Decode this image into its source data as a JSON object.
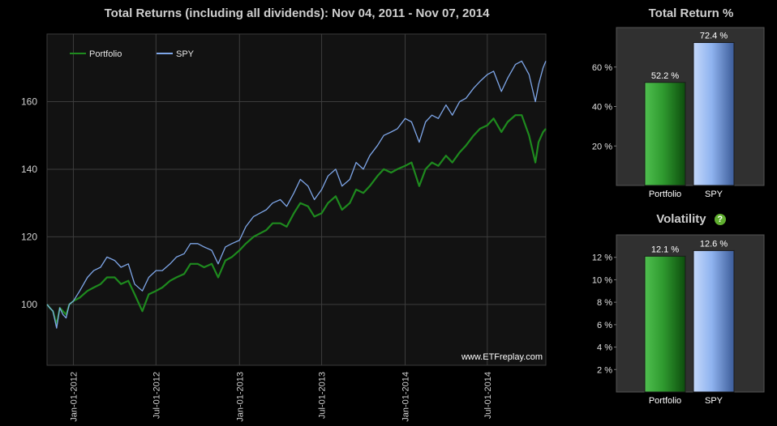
{
  "main_chart": {
    "title": "Total Returns (including all dividends): Nov 04, 2011 - Nov 07, 2014",
    "watermark": "www.ETFreplay.com",
    "chart_data": {
      "type": "line",
      "ylim": [
        82,
        180
      ],
      "yticks": [
        100,
        120,
        140,
        160
      ],
      "xlim": [
        "2011-11-04",
        "2014-11-07"
      ],
      "xticks": [
        {
          "date": "2012-01-01",
          "label": "Jan-01-2012"
        },
        {
          "date": "2012-07-01",
          "label": "Jul-01-2012"
        },
        {
          "date": "2013-01-01",
          "label": "Jan-01-2013"
        },
        {
          "date": "2013-07-01",
          "label": "Jul-01-2013"
        },
        {
          "date": "2014-01-01",
          "label": "Jan-01-2014"
        },
        {
          "date": "2014-07-01",
          "label": "Jul-01-2014"
        }
      ],
      "grid": true,
      "legend_position": "top-left",
      "series": [
        {
          "name": "Portfolio",
          "color": "#1e8a1e",
          "points": [
            [
              "2011-11-04",
              100
            ],
            [
              "2011-11-10",
              99
            ],
            [
              "2011-11-17",
              98
            ],
            [
              "2011-11-25",
              94
            ],
            [
              "2011-12-02",
              99
            ],
            [
              "2011-12-09",
              98
            ],
            [
              "2011-12-16",
              97
            ],
            [
              "2011-12-23",
              100
            ],
            [
              "2012-01-01",
              101
            ],
            [
              "2012-01-15",
              102
            ],
            [
              "2012-02-01",
              104
            ],
            [
              "2012-02-15",
              105
            ],
            [
              "2012-03-01",
              106
            ],
            [
              "2012-03-15",
              108
            ],
            [
              "2012-04-01",
              108
            ],
            [
              "2012-04-15",
              106
            ],
            [
              "2012-05-01",
              107
            ],
            [
              "2012-05-15",
              103
            ],
            [
              "2012-06-01",
              98
            ],
            [
              "2012-06-15",
              103
            ],
            [
              "2012-07-01",
              104
            ],
            [
              "2012-07-15",
              105
            ],
            [
              "2012-08-01",
              107
            ],
            [
              "2012-08-15",
              108
            ],
            [
              "2012-09-01",
              109
            ],
            [
              "2012-09-15",
              112
            ],
            [
              "2012-10-01",
              112
            ],
            [
              "2012-10-15",
              111
            ],
            [
              "2012-11-01",
              112
            ],
            [
              "2012-11-15",
              108
            ],
            [
              "2012-12-01",
              113
            ],
            [
              "2012-12-15",
              114
            ],
            [
              "2013-01-01",
              116
            ],
            [
              "2013-01-15",
              118
            ],
            [
              "2013-02-01",
              120
            ],
            [
              "2013-02-15",
              121
            ],
            [
              "2013-03-01",
              122
            ],
            [
              "2013-03-15",
              124
            ],
            [
              "2013-04-01",
              124
            ],
            [
              "2013-04-15",
              123
            ],
            [
              "2013-05-01",
              127
            ],
            [
              "2013-05-15",
              130
            ],
            [
              "2013-06-01",
              129
            ],
            [
              "2013-06-15",
              126
            ],
            [
              "2013-07-01",
              127
            ],
            [
              "2013-07-15",
              130
            ],
            [
              "2013-08-01",
              132
            ],
            [
              "2013-08-15",
              128
            ],
            [
              "2013-09-01",
              130
            ],
            [
              "2013-09-15",
              134
            ],
            [
              "2013-10-01",
              133
            ],
            [
              "2013-10-15",
              135
            ],
            [
              "2013-11-01",
              138
            ],
            [
              "2013-11-15",
              140
            ],
            [
              "2013-12-01",
              139
            ],
            [
              "2013-12-15",
              140
            ],
            [
              "2014-01-01",
              141
            ],
            [
              "2014-01-15",
              142
            ],
            [
              "2014-02-01",
              135
            ],
            [
              "2014-02-15",
              140
            ],
            [
              "2014-03-01",
              142
            ],
            [
              "2014-03-15",
              141
            ],
            [
              "2014-04-01",
              144
            ],
            [
              "2014-04-15",
              142
            ],
            [
              "2014-05-01",
              145
            ],
            [
              "2014-05-15",
              147
            ],
            [
              "2014-06-01",
              150
            ],
            [
              "2014-06-15",
              152
            ],
            [
              "2014-07-01",
              153
            ],
            [
              "2014-07-15",
              155
            ],
            [
              "2014-08-01",
              151
            ],
            [
              "2014-08-15",
              154
            ],
            [
              "2014-09-01",
              156
            ],
            [
              "2014-09-15",
              156
            ],
            [
              "2014-10-01",
              150
            ],
            [
              "2014-10-15",
              142
            ],
            [
              "2014-10-22",
              148
            ],
            [
              "2014-11-01",
              151
            ],
            [
              "2014-11-07",
              152
            ]
          ]
        },
        {
          "name": "SPY",
          "color": "#7ea6e8",
          "points": [
            [
              "2011-11-04",
              100
            ],
            [
              "2011-11-10",
              99
            ],
            [
              "2011-11-17",
              98
            ],
            [
              "2011-11-25",
              93
            ],
            [
              "2011-12-02",
              99
            ],
            [
              "2011-12-09",
              97
            ],
            [
              "2011-12-16",
              96
            ],
            [
              "2011-12-23",
              100
            ],
            [
              "2012-01-01",
              101
            ],
            [
              "2012-01-15",
              104
            ],
            [
              "2012-02-01",
              108
            ],
            [
              "2012-02-15",
              110
            ],
            [
              "2012-03-01",
              111
            ],
            [
              "2012-03-15",
              114
            ],
            [
              "2012-04-01",
              113
            ],
            [
              "2012-04-15",
              111
            ],
            [
              "2012-05-01",
              112
            ],
            [
              "2012-05-15",
              106
            ],
            [
              "2012-06-01",
              104
            ],
            [
              "2012-06-15",
              108
            ],
            [
              "2012-07-01",
              110
            ],
            [
              "2012-07-15",
              110
            ],
            [
              "2012-08-01",
              112
            ],
            [
              "2012-08-15",
              114
            ],
            [
              "2012-09-01",
              115
            ],
            [
              "2012-09-15",
              118
            ],
            [
              "2012-10-01",
              118
            ],
            [
              "2012-10-15",
              117
            ],
            [
              "2012-11-01",
              116
            ],
            [
              "2012-11-15",
              112
            ],
            [
              "2012-12-01",
              117
            ],
            [
              "2012-12-15",
              118
            ],
            [
              "2013-01-01",
              119
            ],
            [
              "2013-01-15",
              123
            ],
            [
              "2013-02-01",
              126
            ],
            [
              "2013-02-15",
              127
            ],
            [
              "2013-03-01",
              128
            ],
            [
              "2013-03-15",
              130
            ],
            [
              "2013-04-01",
              131
            ],
            [
              "2013-04-15",
              129
            ],
            [
              "2013-05-01",
              133
            ],
            [
              "2013-05-15",
              137
            ],
            [
              "2013-06-01",
              135
            ],
            [
              "2013-06-15",
              131
            ],
            [
              "2013-07-01",
              134
            ],
            [
              "2013-07-15",
              138
            ],
            [
              "2013-08-01",
              140
            ],
            [
              "2013-08-15",
              135
            ],
            [
              "2013-09-01",
              137
            ],
            [
              "2013-09-15",
              142
            ],
            [
              "2013-10-01",
              140
            ],
            [
              "2013-10-15",
              144
            ],
            [
              "2013-11-01",
              147
            ],
            [
              "2013-11-15",
              150
            ],
            [
              "2013-12-01",
              151
            ],
            [
              "2013-12-15",
              152
            ],
            [
              "2014-01-01",
              155
            ],
            [
              "2014-01-15",
              154
            ],
            [
              "2014-02-01",
              148
            ],
            [
              "2014-02-15",
              154
            ],
            [
              "2014-03-01",
              156
            ],
            [
              "2014-03-15",
              155
            ],
            [
              "2014-04-01",
              159
            ],
            [
              "2014-04-15",
              156
            ],
            [
              "2014-05-01",
              160
            ],
            [
              "2014-05-15",
              161
            ],
            [
              "2014-06-01",
              164
            ],
            [
              "2014-06-15",
              166
            ],
            [
              "2014-07-01",
              168
            ],
            [
              "2014-07-15",
              169
            ],
            [
              "2014-08-01",
              163
            ],
            [
              "2014-08-15",
              167
            ],
            [
              "2014-09-01",
              171
            ],
            [
              "2014-09-15",
              172
            ],
            [
              "2014-10-01",
              168
            ],
            [
              "2014-10-15",
              160
            ],
            [
              "2014-10-22",
              165
            ],
            [
              "2014-11-01",
              170
            ],
            [
              "2014-11-07",
              172
            ]
          ]
        }
      ]
    }
  },
  "total_return_chart": {
    "title": "Total Return %",
    "chart_data": {
      "type": "bar",
      "categories": [
        "Portfolio",
        "SPY"
      ],
      "values": [
        52.2,
        72.4
      ],
      "value_labels": [
        "52.2 %",
        "72.4 %"
      ],
      "ylim": [
        0,
        80
      ],
      "yticks": [
        20,
        40,
        60
      ],
      "ytick_labels": [
        "20 %",
        "40 %",
        "60 %"
      ],
      "colors": [
        "#2f9a2f",
        "#8fb3ef"
      ]
    }
  },
  "volatility_chart": {
    "title": "Volatility",
    "help_icon": "question-circle-icon",
    "chart_data": {
      "type": "bar",
      "categories": [
        "Portfolio",
        "SPY"
      ],
      "values": [
        12.1,
        12.6
      ],
      "value_labels": [
        "12.1 %",
        "12.6 %"
      ],
      "ylim": [
        0,
        14
      ],
      "yticks": [
        2,
        4,
        6,
        8,
        10,
        12
      ],
      "ytick_labels": [
        "2 %",
        "4 %",
        "6 %",
        "8 %",
        "10 %",
        "12 %"
      ],
      "colors": [
        "#2f9a2f",
        "#8fb3ef"
      ]
    }
  }
}
